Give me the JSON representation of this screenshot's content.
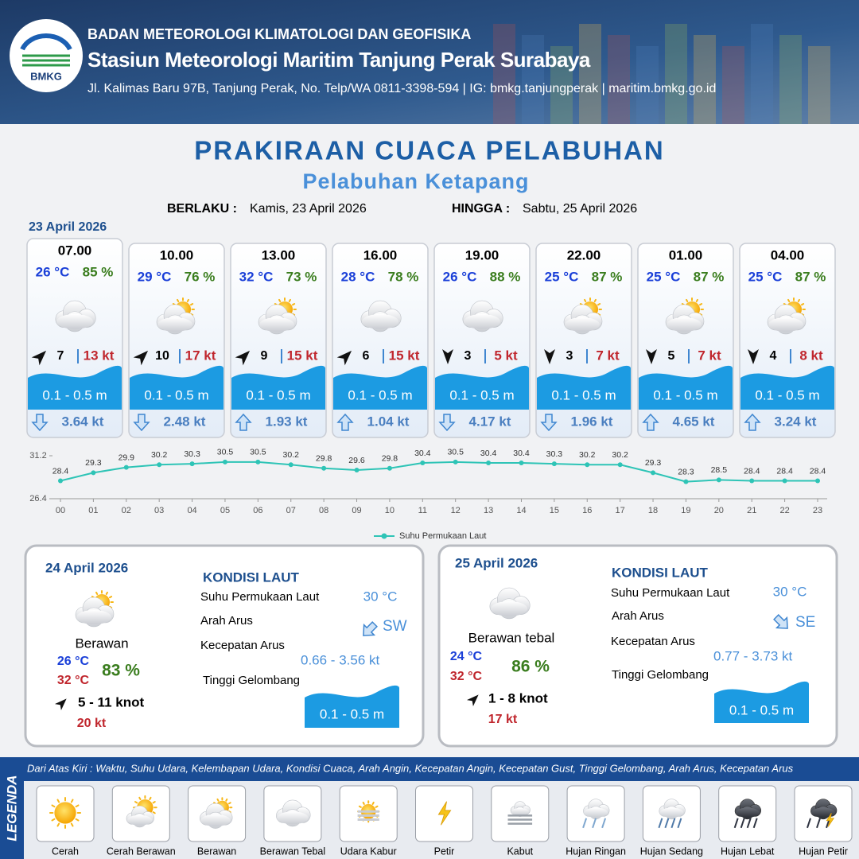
{
  "header": {
    "logo": "BMKG",
    "agency": "BADAN METEOROLOGI KLIMATOLOGI DAN GEOFISIKA",
    "station": "Stasiun Meteorologi Maritim Tanjung Perak Surabaya",
    "address": "Jl. Kalimas Baru 97B, Tanjung Perak, No. Telp/WA 0811-3398-594 | IG: bmkg.tanjungperak | maritim.bmkg.go.id"
  },
  "title": "PRAKIRAAN CUACA PELABUHAN",
  "subtitle": "Pelabuhan Ketapang",
  "validity": {
    "from_label": "BERLAKU :",
    "from": "Kamis, 23 April 2026",
    "until_label": "HINGGA :",
    "until": "Sabtu, 25 April 2026"
  },
  "today": {
    "date": "23 April 2026",
    "forecasts": [
      {
        "time": "07.00",
        "temperature": "26 °C",
        "humidity": "85 %",
        "wind": "7",
        "gust": "13 kt",
        "wave": "0.1 - 0.5 m",
        "current": "3.64 kt"
      },
      {
        "time": "10.00",
        "temperature": "29 °C",
        "humidity": "76 %",
        "wind": "10",
        "gust": "17 kt",
        "wave": "0.1 - 0.5 m",
        "current": "2.48 kt"
      },
      {
        "time": "13.00",
        "temperature": "32 °C",
        "humidity": "73 %",
        "wind": "9",
        "gust": "15 kt",
        "wave": "0.1 - 0.5 m",
        "current": "1.93 kt"
      },
      {
        "time": "16.00",
        "temperature": "28 °C",
        "humidity": "78 %",
        "wind": "6",
        "gust": "15 kt",
        "wave": "0.1 - 0.5 m",
        "current": "1.04 kt"
      },
      {
        "time": "19.00",
        "temperature": "26 °C",
        "humidity": "88 %",
        "wind": "3",
        "gust": "5 kt",
        "wave": "0.1 - 0.5 m",
        "current": "4.17 kt"
      },
      {
        "time": "22.00",
        "temperature": "25 °C",
        "humidity": "87 %",
        "wind": "3",
        "gust": "7 kt",
        "wave": "0.1 - 0.5 m",
        "current": "1.96 kt"
      },
      {
        "time": "01.00",
        "temperature": "25 °C",
        "humidity": "87 %",
        "wind": "5",
        "gust": "7 kt",
        "wave": "0.1 - 0.5 m",
        "current": "4.65 kt"
      },
      {
        "time": "04.00",
        "temperature": "25 °C",
        "humidity": "87 %",
        "wind": "4",
        "gust": "8 kt",
        "wave": "0.1 - 0.5 m",
        "current": "3.24 kt"
      }
    ]
  },
  "chart_data": {
    "type": "line",
    "categories": [
      "00",
      "01",
      "02",
      "03",
      "04",
      "05",
      "06",
      "07",
      "08",
      "09",
      "10",
      "11",
      "12",
      "13",
      "14",
      "15",
      "16",
      "17",
      "18",
      "19",
      "20",
      "21",
      "22",
      "23"
    ],
    "series": [
      {
        "name": "Suhu Permukaan Laut",
        "color": "#2ec4b6",
        "values": [
          28.4,
          29.3,
          29.9,
          30.2,
          30.3,
          30.5,
          30.5,
          30.2,
          29.8,
          29.6,
          29.8,
          30.4,
          30.5,
          30.4,
          30.4,
          30.3,
          30.2,
          30.2,
          29.3,
          28.3,
          28.5,
          28.4,
          28.4,
          28.4
        ]
      }
    ],
    "ylim": [
      26.4,
      31.2
    ],
    "yticks": [
      26.4,
      31.2
    ]
  },
  "days": [
    {
      "date": "24 April 2026",
      "condition": "Berawan",
      "temp_min": "26 °C",
      "temp_max": "32 °C",
      "humidity": "83 %",
      "wind": "5  - 11 knot",
      "gust": "20 kt",
      "sea_title": "KONDISI LAUT",
      "sst_label": "Suhu Permukaan Laut",
      "direction_label": "Arah Arus",
      "speed_label": "Kecepatan Arus",
      "wave_label": "Tinggi Gelombang",
      "sst": "30 °C",
      "current_direction": "SW",
      "current_speed": "0.66  - 3.56 kt",
      "wave": "0.1 - 0.5 m"
    },
    {
      "date": "25 April 2026",
      "condition": "Berawan tebal",
      "temp_min": "24 °C",
      "temp_max": "32 °C",
      "humidity": "86 %",
      "wind": "1  - 8 knot",
      "gust": "17 kt",
      "sea_title": "KONDISI LAUT",
      "sst_label": "Suhu Permukaan Laut",
      "direction_label": "Arah Arus",
      "speed_label": "Kecepatan Arus",
      "wave_label": "Tinggi Gelombang",
      "sst": "30 °C",
      "current_direction": "SE",
      "current_speed": "0.77 - 3.73 kt",
      "wave": "0.1 - 0.5 m"
    }
  ],
  "legend": {
    "title": "LEGENDA",
    "description": "Dari Atas Kiri : Waktu, Suhu Udara, Kelembapan Udara, Kondisi Cuaca, Arah Angin, Kecepatan Angin, Kecepatan Gust, Tinggi Gelombang, Arah Arus, Kecepatan Arus",
    "items": [
      "Cerah",
      "Cerah Berawan",
      "Berawan",
      "Berawan Tebal",
      "Udara Kabur",
      "Petir",
      "Kabut",
      "Hujan Ringan",
      "Hujan Sedang",
      "Hujan Lebat",
      "Hujan Petir"
    ]
  }
}
